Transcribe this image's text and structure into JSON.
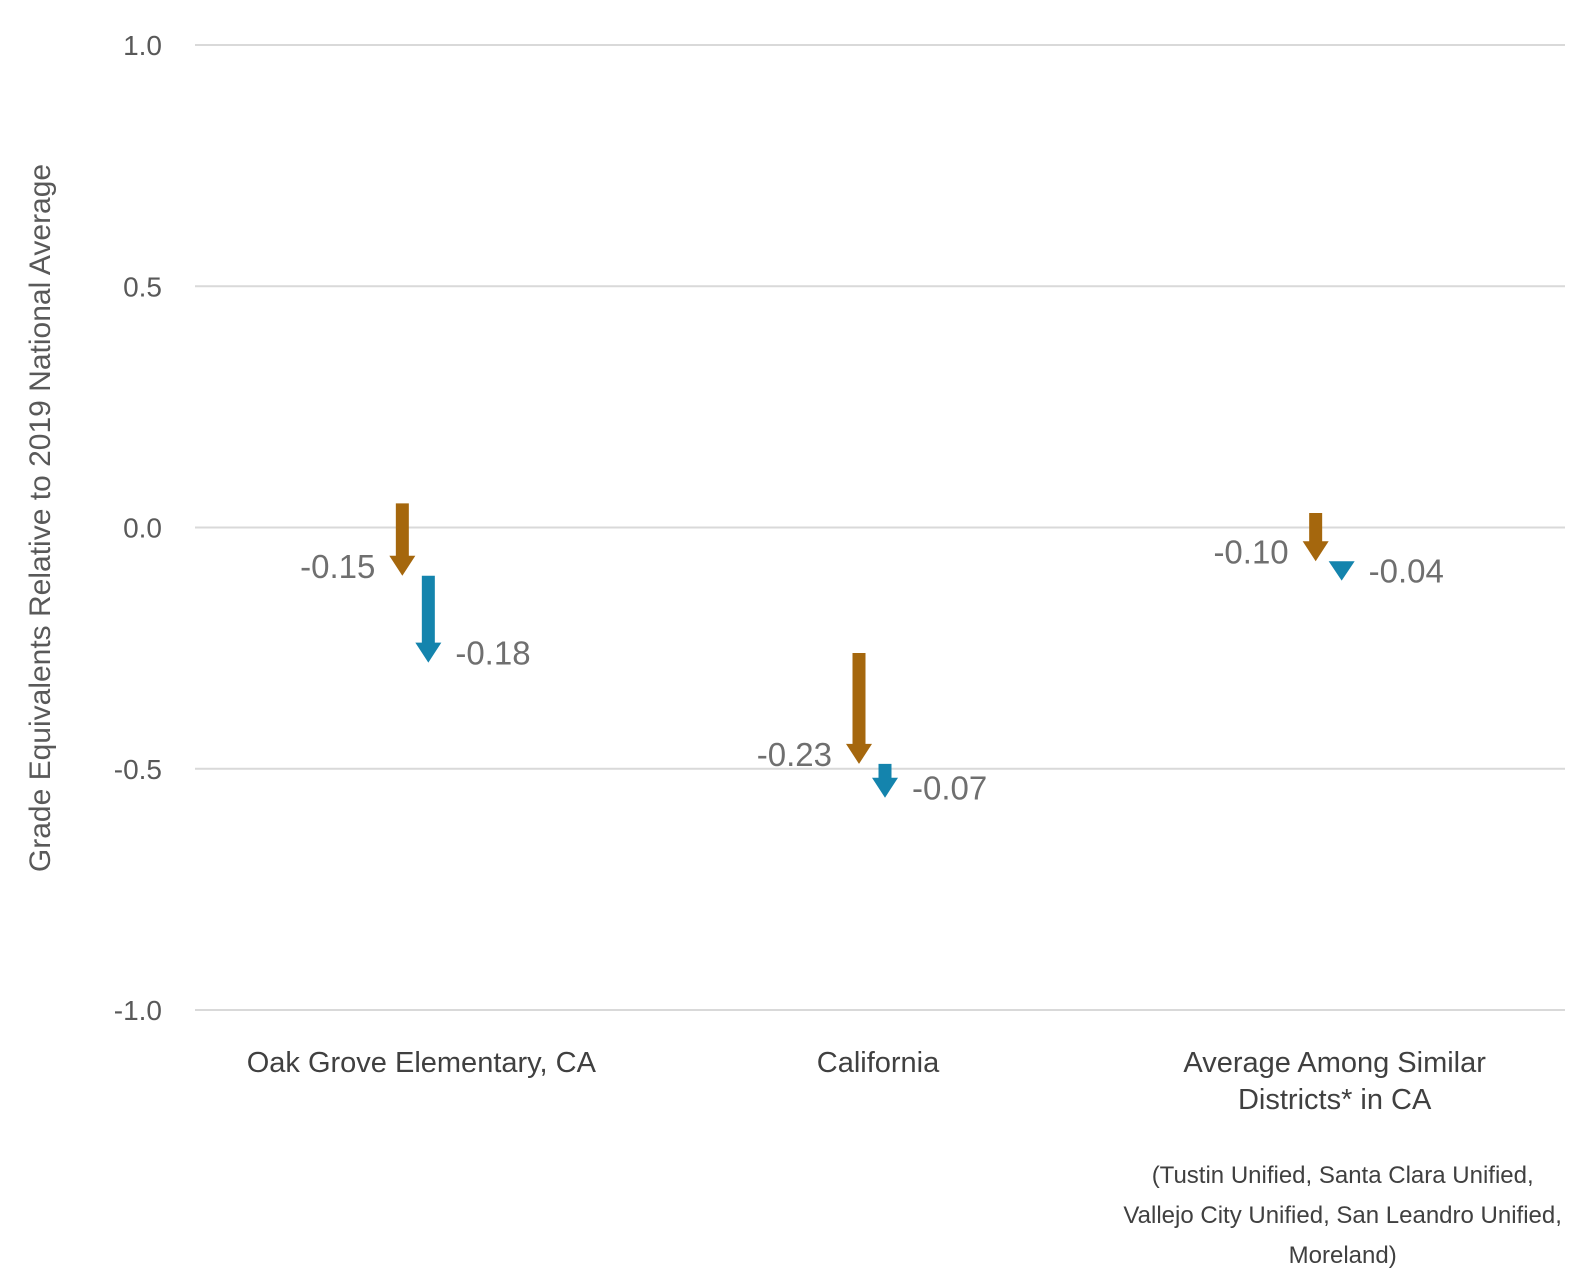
{
  "chart_data": {
    "type": "arrow",
    "ylabel": "Grade Equivalents Relative to 2019 National Average",
    "ylim": [
      -1.0,
      1.0
    ],
    "yticks": [
      "1.0",
      "0.5",
      "0.0",
      "-0.5",
      "-1.0"
    ],
    "ytick_values": [
      1.0,
      0.5,
      0.0,
      -0.5,
      -1.0
    ],
    "grid": true,
    "colors": {
      "series1": "#a5670d",
      "series2": "#1484ad"
    },
    "categories": [
      {
        "label_lines": [
          "Oak Grove Elementary, CA"
        ],
        "note_lines": [],
        "arrows": [
          {
            "series": "series1",
            "start": 0.05,
            "end": -0.1,
            "change_label": "-0.15"
          },
          {
            "series": "series2",
            "start": -0.1,
            "end": -0.28,
            "change_label": "-0.18"
          }
        ]
      },
      {
        "label_lines": [
          "California"
        ],
        "note_lines": [],
        "arrows": [
          {
            "series": "series1",
            "start": -0.26,
            "end": -0.49,
            "change_label": "-0.23"
          },
          {
            "series": "series2",
            "start": -0.49,
            "end": -0.56,
            "change_label": "-0.07"
          }
        ]
      },
      {
        "label_lines": [
          "Average Among Similar",
          "Districts* in CA"
        ],
        "note_lines": [
          "(Tustin Unified, Santa Clara Unified,",
          "Vallejo City Unified, San Leandro Unified,",
          "Moreland)"
        ],
        "arrows": [
          {
            "series": "series1",
            "start": 0.03,
            "end": -0.07,
            "change_label": "-0.10"
          },
          {
            "series": "series2",
            "start": -0.07,
            "end": -0.11,
            "change_label": "-0.04"
          }
        ]
      }
    ]
  }
}
